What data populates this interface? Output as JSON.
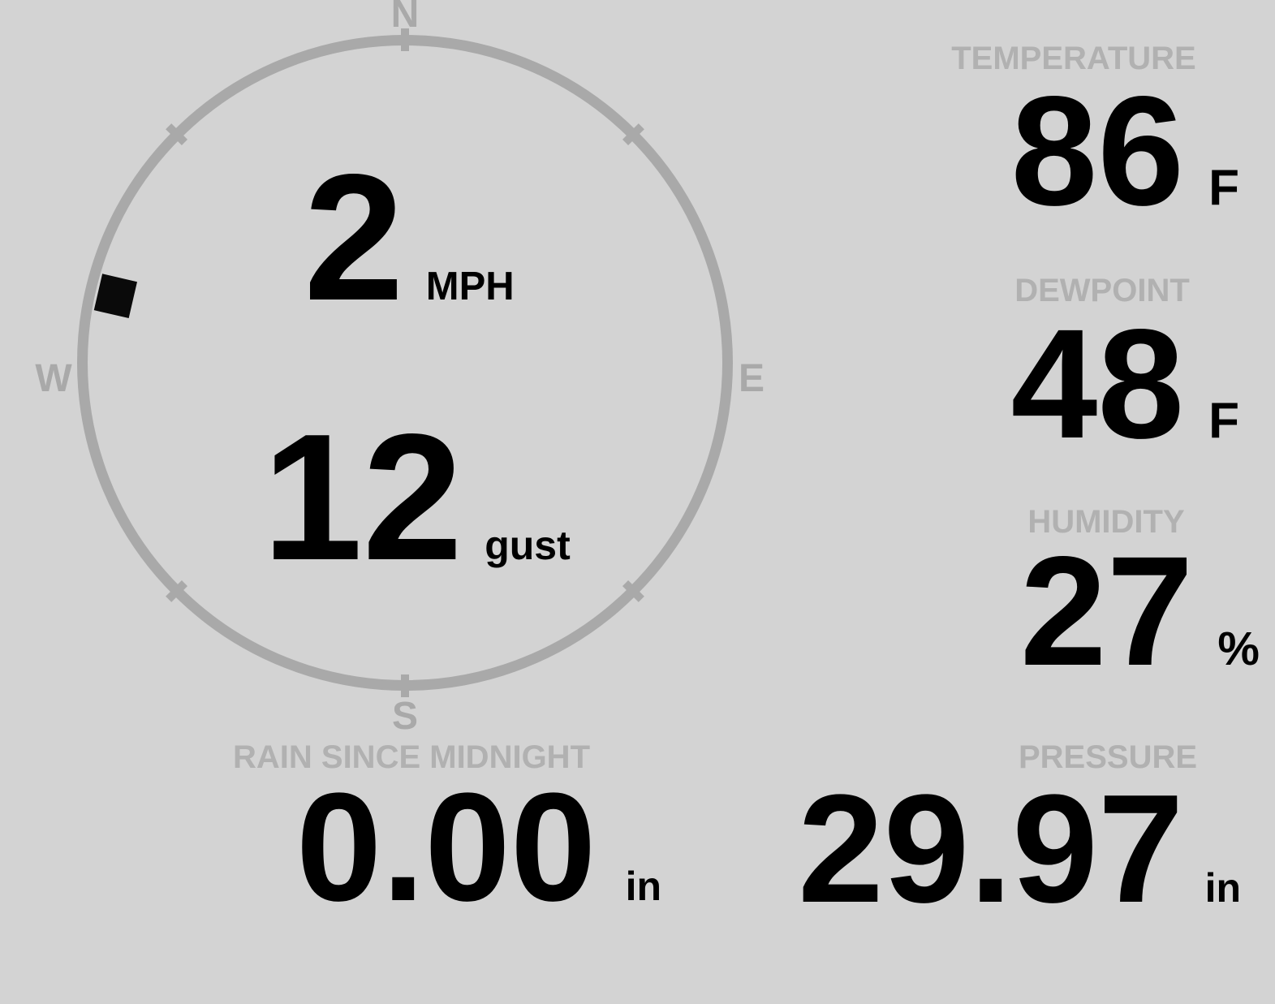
{
  "wind": {
    "speed": "2",
    "speed_unit": "MPH",
    "gust": "12",
    "gust_unit": "gust",
    "direction_degrees": 283,
    "compass": {
      "north": "N",
      "south": "S",
      "east": "E",
      "west": "W"
    }
  },
  "temperature": {
    "label": "TEMPERATURE",
    "value": "86",
    "unit": "F"
  },
  "dewpoint": {
    "label": "DEWPOINT",
    "value": "48",
    "unit": "F"
  },
  "humidity": {
    "label": "HUMIDITY",
    "value": "27",
    "unit": "%"
  },
  "rain": {
    "label": "RAIN SINCE MIDNIGHT",
    "value": "0.00",
    "unit": "in"
  },
  "pressure": {
    "label": "PRESSURE",
    "value": "29.97",
    "unit": "in"
  },
  "colors": {
    "background": "#d3d3d3",
    "ring_gray": "#a9a9a9",
    "label_gray": "#b1b1b1",
    "value_black": "#000000",
    "marker_black": "#0a0a0a"
  }
}
